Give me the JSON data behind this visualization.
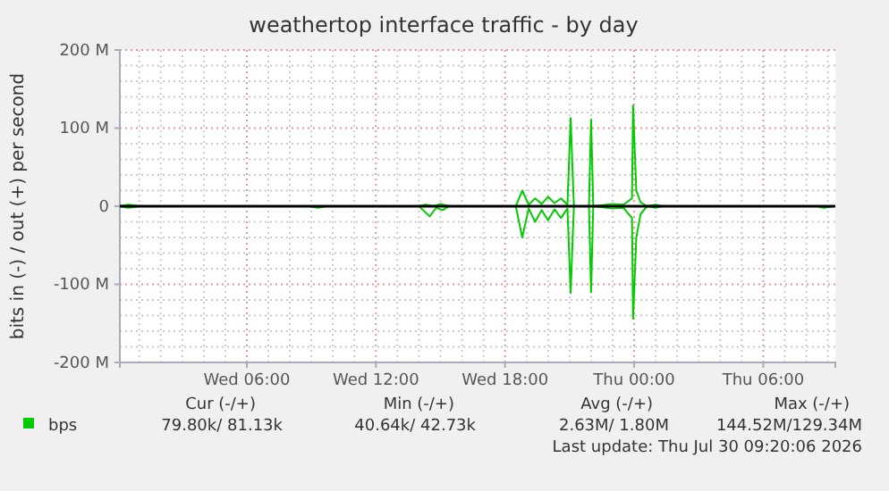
{
  "chart_data": {
    "type": "line",
    "title": "weathertop interface traffic - by day",
    "ylabel": "bits in (-) / out (+) per second",
    "xlim": [
      "2026-07-29T00:06",
      "2026-07-30T09:21"
    ],
    "xticks": [
      {
        "value": "2026-07-29T06:00",
        "label": "Wed 06:00"
      },
      {
        "value": "2026-07-29T12:00",
        "label": "Wed 12:00"
      },
      {
        "value": "2026-07-29T18:00",
        "label": "Wed 18:00"
      },
      {
        "value": "2026-07-30T00:00",
        "label": "Thu 00:00"
      },
      {
        "value": "2026-07-30T06:00",
        "label": "Thu 06:00"
      }
    ],
    "ylim": [
      -200,
      200
    ],
    "yticks": [
      {
        "value": -200,
        "label": "-200 M"
      },
      {
        "value": -100,
        "label": "-100 M"
      },
      0,
      {
        "value": 100,
        "label": "100 M"
      },
      {
        "value": 200,
        "label": "200 M"
      }
    ],
    "grid": true,
    "legend": "bottom left",
    "marker": "none",
    "line_style": "solid",
    "ref_lines": [
      {
        "axis": "y",
        "value": 0,
        "color": "#000000"
      }
    ],
    "series": [
      {
        "name": "bps",
        "color": "#00cc00",
        "x": [
          "2026-07-29T00:06",
          "2026-07-29T00:30",
          "2026-07-29T01:00",
          "2026-07-29T03:00",
          "2026-07-29T08:54",
          "2026-07-29T09:18",
          "2026-07-29T09:42",
          "2026-07-29T14:00",
          "2026-07-29T14:18",
          "2026-07-29T14:42",
          "2026-07-29T15:00",
          "2026-07-29T15:24",
          "2026-07-29T18:30",
          "2026-07-29T18:48",
          "2026-07-29T19:06",
          "2026-07-29T19:24",
          "2026-07-29T19:42",
          "2026-07-29T20:00",
          "2026-07-29T20:18",
          "2026-07-29T20:36",
          "2026-07-29T20:54",
          "2026-07-29T21:03",
          "2026-07-29T21:12",
          "2026-07-29T21:54",
          "2026-07-29T22:00",
          "2026-07-29T22:06",
          "2026-07-29T23:00",
          "2026-07-29T23:30",
          "2026-07-29T23:54",
          "2026-07-29T23:57",
          "2026-07-30T00:06",
          "2026-07-30T00:18",
          "2026-07-30T00:36",
          "2026-07-30T01:00",
          "2026-07-30T01:18",
          "2026-07-30T08:30",
          "2026-07-30T08:48",
          "2026-07-30T09:18"
        ],
        "values": [
          0,
          2,
          0,
          0,
          0,
          0,
          0,
          0,
          2,
          0,
          3,
          0,
          0,
          20,
          2,
          10,
          3,
          12,
          4,
          10,
          2,
          113,
          0,
          0,
          111,
          0,
          3,
          2,
          10,
          129,
          20,
          5,
          0,
          2,
          0,
          0,
          0,
          0
        ]
      },
      {
        "color": "#00cc00",
        "x": [
          "2026-07-29T00:06",
          "2026-07-29T00:30",
          "2026-07-29T01:00",
          "2026-07-29T03:00",
          "2026-07-29T08:54",
          "2026-07-29T09:18",
          "2026-07-29T09:42",
          "2026-07-29T14:00",
          "2026-07-29T14:30",
          "2026-07-29T14:48",
          "2026-07-29T15:06",
          "2026-07-29T15:24",
          "2026-07-29T18:30",
          "2026-07-29T18:48",
          "2026-07-29T19:06",
          "2026-07-29T19:24",
          "2026-07-29T19:42",
          "2026-07-29T20:00",
          "2026-07-29T20:18",
          "2026-07-29T20:36",
          "2026-07-29T20:54",
          "2026-07-29T21:03",
          "2026-07-29T21:12",
          "2026-07-29T21:54",
          "2026-07-29T22:00",
          "2026-07-29T22:06",
          "2026-07-29T23:00",
          "2026-07-29T23:30",
          "2026-07-29T23:54",
          "2026-07-29T23:57",
          "2026-07-30T00:06",
          "2026-07-30T00:18",
          "2026-07-30T00:36",
          "2026-07-30T01:00",
          "2026-07-30T01:18",
          "2026-07-30T08:30",
          "2026-07-30T08:48",
          "2026-07-30T09:18"
        ],
        "values": [
          0,
          -2,
          0,
          0,
          0,
          -2,
          0,
          0,
          -13,
          -2,
          -5,
          0,
          0,
          -40,
          -3,
          -20,
          -5,
          -18,
          -4,
          -15,
          -3,
          -111,
          0,
          0,
          -110,
          0,
          -3,
          -2,
          -15,
          -144,
          -40,
          -10,
          0,
          -2,
          0,
          0,
          -2,
          0
        ]
      }
    ],
    "annotations": [
      "Cur (-/+)",
      "Min (-/+)",
      "Avg (-/+)",
      "Max (-/+)",
      "79.80k/ 81.13k",
      "40.64k/ 42.73k",
      "2.63M/ 1.80M",
      "144.52M/129.34M",
      "Last update: Thu Jul 30 09:20:06 2026"
    ]
  }
}
